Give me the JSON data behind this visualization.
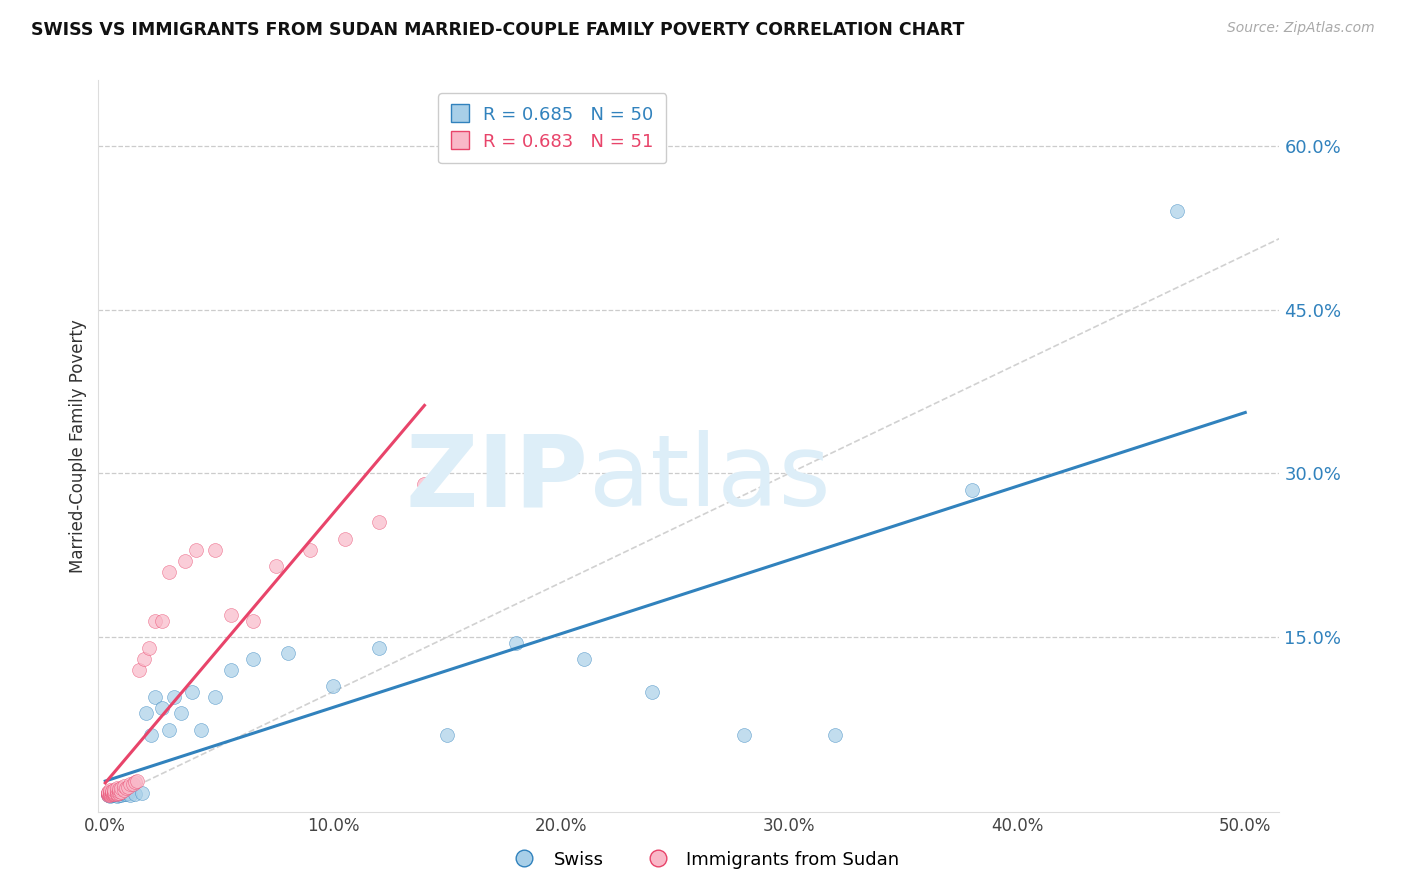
{
  "title": "SWISS VS IMMIGRANTS FROM SUDAN MARRIED-COUPLE FAMILY POVERTY CORRELATION CHART",
  "source": "Source: ZipAtlas.com",
  "ylabel": "Married-Couple Family Poverty",
  "xlim": [
    -0.003,
    0.515
  ],
  "ylim": [
    -0.01,
    0.66
  ],
  "xticks": [
    0.0,
    0.1,
    0.2,
    0.3,
    0.4,
    0.5
  ],
  "yticks": [
    0.0,
    0.15,
    0.3,
    0.45,
    0.6
  ],
  "xticklabels": [
    "0.0%",
    "10.0%",
    "20.0%",
    "30.0%",
    "40.0%",
    "50.0%"
  ],
  "yticklabels": [
    "",
    "15.0%",
    "30.0%",
    "45.0%",
    "60.0%"
  ],
  "swiss_color": "#a8cfe8",
  "sudan_color": "#f9b8c8",
  "swiss_line_color": "#3182bd",
  "sudan_line_color": "#e8446a",
  "diagonal_color": "#cccccc",
  "swiss_R": 0.685,
  "swiss_N": 50,
  "sudan_R": 0.683,
  "sudan_N": 51,
  "swiss_x": [
    0.001,
    0.001,
    0.001,
    0.002,
    0.002,
    0.002,
    0.002,
    0.003,
    0.003,
    0.003,
    0.003,
    0.004,
    0.004,
    0.004,
    0.005,
    0.005,
    0.005,
    0.006,
    0.006,
    0.007,
    0.007,
    0.008,
    0.009,
    0.01,
    0.011,
    0.013,
    0.016,
    0.018,
    0.02,
    0.022,
    0.025,
    0.028,
    0.03,
    0.033,
    0.038,
    0.042,
    0.048,
    0.055,
    0.065,
    0.08,
    0.1,
    0.12,
    0.15,
    0.18,
    0.21,
    0.24,
    0.28,
    0.32,
    0.38,
    0.47
  ],
  "swiss_y": [
    0.005,
    0.006,
    0.007,
    0.004,
    0.006,
    0.007,
    0.008,
    0.005,
    0.006,
    0.007,
    0.008,
    0.005,
    0.006,
    0.007,
    0.004,
    0.006,
    0.007,
    0.005,
    0.007,
    0.005,
    0.007,
    0.006,
    0.006,
    0.007,
    0.005,
    0.006,
    0.007,
    0.08,
    0.06,
    0.095,
    0.085,
    0.065,
    0.095,
    0.08,
    0.1,
    0.065,
    0.095,
    0.12,
    0.13,
    0.135,
    0.105,
    0.14,
    0.06,
    0.145,
    0.13,
    0.1,
    0.06,
    0.06,
    0.285,
    0.54
  ],
  "sudan_x": [
    0.001,
    0.001,
    0.001,
    0.001,
    0.001,
    0.002,
    0.002,
    0.002,
    0.002,
    0.002,
    0.003,
    0.003,
    0.003,
    0.003,
    0.004,
    0.004,
    0.004,
    0.004,
    0.005,
    0.005,
    0.005,
    0.005,
    0.006,
    0.006,
    0.006,
    0.007,
    0.007,
    0.008,
    0.008,
    0.009,
    0.01,
    0.011,
    0.012,
    0.013,
    0.014,
    0.015,
    0.017,
    0.019,
    0.022,
    0.025,
    0.028,
    0.035,
    0.04,
    0.048,
    0.055,
    0.065,
    0.075,
    0.09,
    0.105,
    0.12,
    0.14
  ],
  "sudan_y": [
    0.005,
    0.006,
    0.007,
    0.007,
    0.008,
    0.005,
    0.006,
    0.007,
    0.008,
    0.01,
    0.006,
    0.007,
    0.008,
    0.009,
    0.006,
    0.007,
    0.008,
    0.01,
    0.006,
    0.007,
    0.009,
    0.012,
    0.007,
    0.009,
    0.011,
    0.008,
    0.012,
    0.01,
    0.014,
    0.012,
    0.013,
    0.015,
    0.015,
    0.017,
    0.018,
    0.12,
    0.13,
    0.14,
    0.165,
    0.165,
    0.21,
    0.22,
    0.23,
    0.23,
    0.17,
    0.165,
    0.215,
    0.23,
    0.24,
    0.255,
    0.29
  ]
}
